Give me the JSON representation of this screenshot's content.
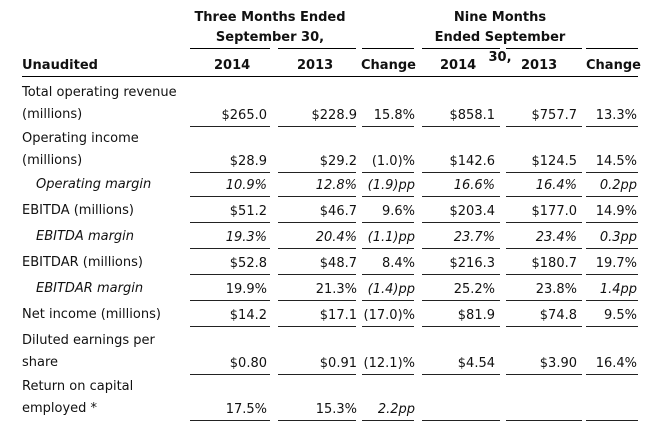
{
  "header": {
    "three_months_line1": "Three Months Ended",
    "three_months_line2": "September 30,",
    "nine_months_line1": "Nine Months",
    "nine_months_line2": "Ended September 30,",
    "col_label": "Unaudited",
    "col_2014_a": "2014",
    "col_2013_a": "2013",
    "col_change_a": "Change",
    "col_2014_b": "2014",
    "col_2013_b": "2013",
    "col_change_b": "Change"
  },
  "rows": [
    {
      "label1": "Total operating revenue",
      "label2": "(millions)",
      "v2014a": "$265.0",
      "v2013a": "$228.9",
      "chga": "15.8%",
      "v2014b": "$858.1",
      "v2013b": "$757.7",
      "chgb": "13.3%"
    },
    {
      "label1": "Operating income",
      "label2": "(millions)",
      "v2014a": "$28.9",
      "v2013a": "$29.2",
      "chga": "(1.0)%",
      "v2014b": "$142.6",
      "v2013b": "$124.5",
      "chgb": "14.5%"
    },
    {
      "label1": "Operating margin",
      "v2014a": "10.9%",
      "v2013a": "12.8%",
      "chga": "(1.9)pp",
      "v2014b": "16.6%",
      "v2013b": "16.4%",
      "chgb": "0.2pp"
    },
    {
      "label1": "EBITDA (millions)",
      "v2014a": "$51.2",
      "v2013a": "$46.7",
      "chga": "9.6%",
      "v2014b": "$203.4",
      "v2013b": "$177.0",
      "chgb": "14.9%"
    },
    {
      "label1": "EBITDA margin",
      "v2014a": "19.3%",
      "v2013a": "20.4%",
      "chga": "(1.1)pp",
      "v2014b": "23.7%",
      "v2013b": "23.4%",
      "chgb": "0.3pp"
    },
    {
      "label1": "EBITDAR (millions)",
      "v2014a": "$52.8",
      "v2013a": "$48.7",
      "chga": "8.4%",
      "v2014b": "$216.3",
      "v2013b": "$180.7",
      "chgb": "19.7%"
    },
    {
      "label1": "EBITDAR margin",
      "v2014a": "19.9%",
      "v2013a": "21.3%",
      "chga": "(1.4)pp",
      "v2014b": "25.2%",
      "v2013b": "23.8%",
      "chgb": "1.4pp"
    },
    {
      "label1": "Net income (millions)",
      "v2014a": "$14.2",
      "v2013a": "$17.1",
      "chga": "(17.0)%",
      "v2014b": "$81.9",
      "v2013b": "$74.8",
      "chgb": "9.5%"
    },
    {
      "label1": "Diluted earnings per",
      "label2": "share",
      "v2014a": "$0.80",
      "v2013a": "$0.91",
      "chga": "(12.1)%",
      "v2014b": "$4.54",
      "v2013b": "$3.90",
      "chgb": "16.4%"
    },
    {
      "label1": "Return on capital",
      "label2": "employed *",
      "v2014a": "17.5%",
      "v2013a": "15.3%",
      "chga": "2.2pp",
      "v2014b": "",
      "v2013b": "",
      "chgb": ""
    }
  ]
}
